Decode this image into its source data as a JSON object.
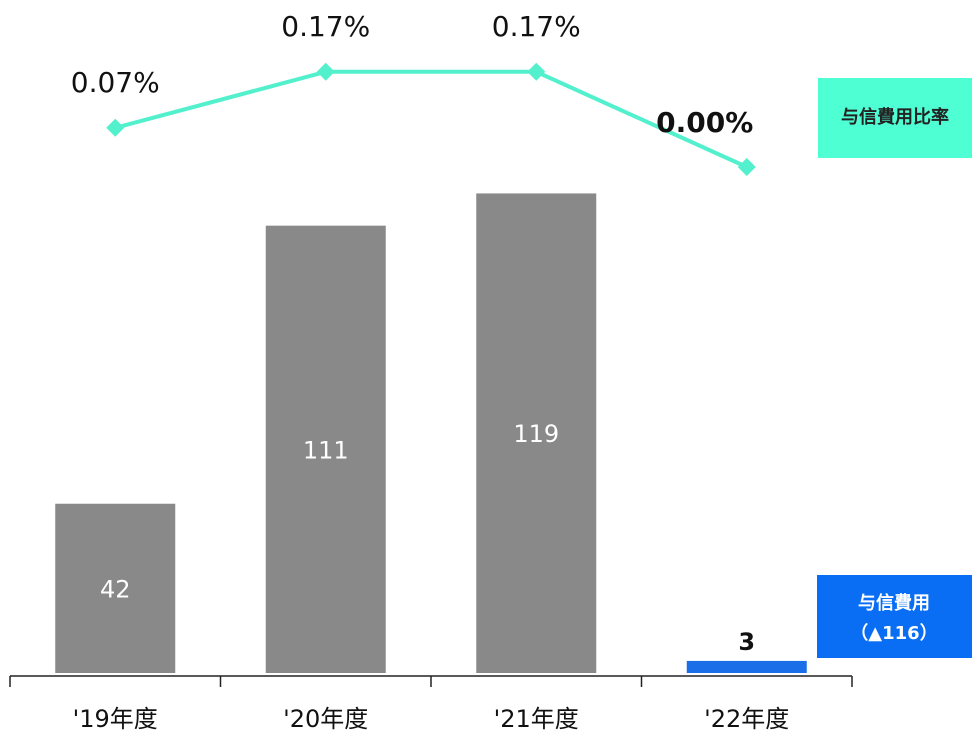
{
  "chart_data": {
    "type": "bar_line",
    "categories": [
      "'19年度",
      "'20年度",
      "'21年度",
      "'22年度"
    ],
    "series": [
      {
        "name": "与信費用",
        "type": "bar",
        "colors": [
          "#898989",
          "#898989",
          "#898989",
          "#1a6ee8"
        ],
        "values": [
          42,
          111,
          119,
          3
        ]
      },
      {
        "name": "与信費用比率",
        "type": "line",
        "axis": "y2",
        "color": "#52f0cc",
        "values": [
          0.07,
          0.17,
          0.17,
          0.0
        ],
        "value_labels": [
          "0.07%",
          "0.17%",
          "0.17%",
          "0.00%"
        ]
      }
    ],
    "annotations": [
      "（▲116）"
    ],
    "emphasis_index": 3,
    "ylim": [
      0,
      167
    ],
    "y2lim": [
      0,
      0.3
    ]
  }
}
